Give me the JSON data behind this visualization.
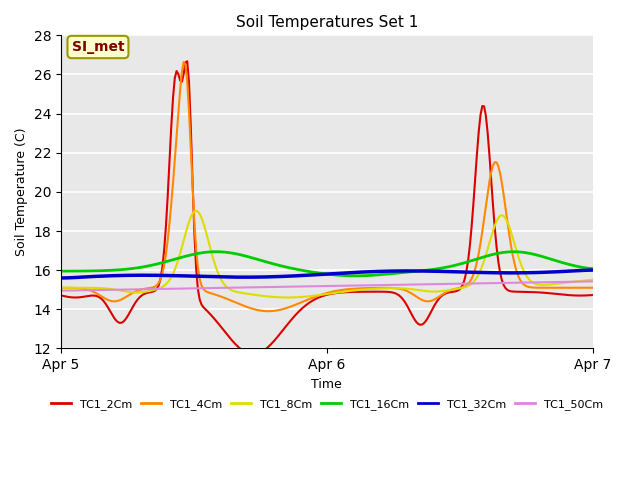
{
  "title": "Soil Temperatures Set 1",
  "xlabel": "Time",
  "ylabel": "Soil Temperature (C)",
  "ylim": [
    12,
    28
  ],
  "yticks": [
    12,
    14,
    16,
    18,
    20,
    22,
    24,
    26,
    28
  ],
  "bg_color": "#e8e8e8",
  "annotation_text": "SI_met",
  "annotation_bg": "#ffffcc",
  "annotation_border": "#999900",
  "annotation_text_color": "#800000",
  "series": {
    "TC1_2Cm": {
      "color": "#dd0000",
      "lw": 1.5
    },
    "TC1_4Cm": {
      "color": "#ff8800",
      "lw": 1.5
    },
    "TC1_8Cm": {
      "color": "#dddd00",
      "lw": 1.5
    },
    "TC1_16Cm": {
      "color": "#00cc00",
      "lw": 2.0
    },
    "TC1_32Cm": {
      "color": "#0000cc",
      "lw": 2.5
    },
    "TC1_50Cm": {
      "color": "#dd88dd",
      "lw": 1.5
    }
  },
  "x_tick_labels": [
    "Apr 5",
    "Apr 6",
    "Apr 7"
  ],
  "x_tick_positions": [
    0.0,
    1.0,
    2.0
  ],
  "num_points": 300
}
